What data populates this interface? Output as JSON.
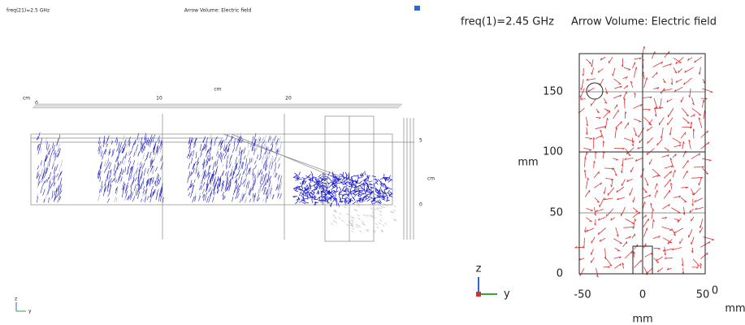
{
  "left": {
    "title_freq": "freq(21)=2.5 GHz",
    "title": "Arrow Volume: Electric field",
    "top_unit": "cm",
    "top_ticks": [
      "10",
      "20"
    ],
    "corner_label": "cm",
    "corner_zero": "0",
    "side_ticks": [
      "5",
      "0"
    ],
    "side_unit": "cm",
    "triad": [
      "z",
      "y"
    ]
  },
  "right": {
    "title_freq": "freq(1)=2.45 GHz",
    "title": "Arrow Volume: Electric field",
    "y_ticks": [
      "150",
      "100",
      "50",
      "0"
    ],
    "y_unit": "mm",
    "x_ticks": [
      "-50",
      "0",
      "50"
    ],
    "x_unit": "mm",
    "corner_zero": "0",
    "corner_unit": "mm",
    "triad": [
      "z",
      "y"
    ]
  }
}
